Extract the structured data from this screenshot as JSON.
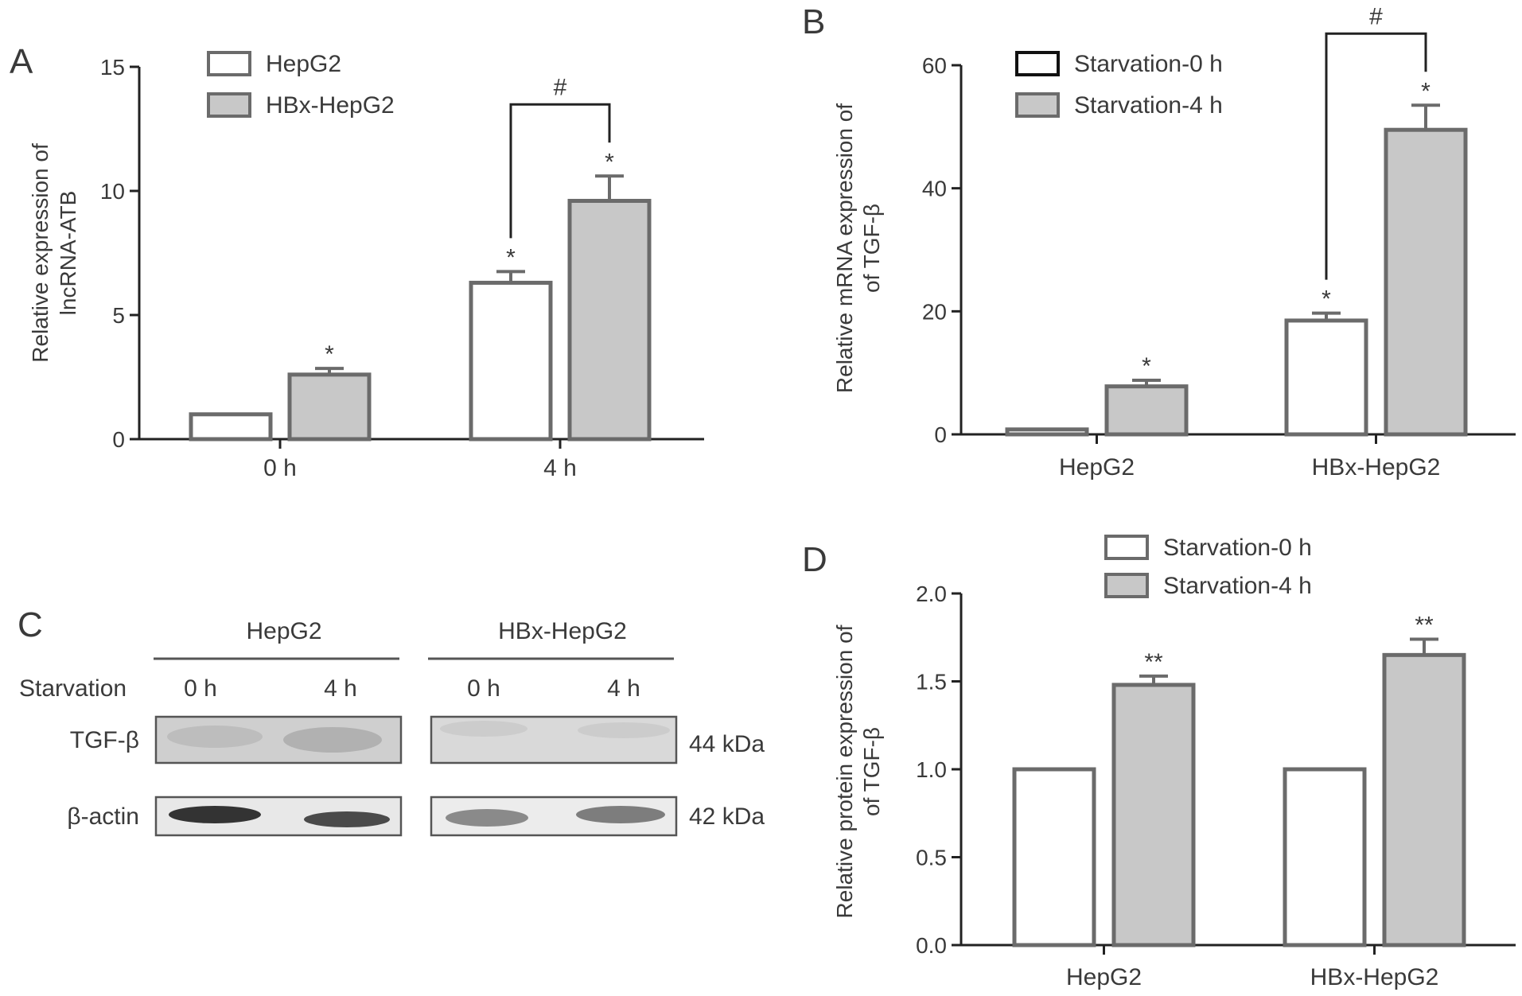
{
  "chart_data": [
    {
      "type": "bar",
      "panel": "A",
      "ylabel_lines": [
        "Relative expression of",
        "lncRNA-ATB"
      ],
      "categories": [
        "0 h",
        "4 h"
      ],
      "series": [
        {
          "name": "HepG2",
          "values": [
            1.0,
            6.3
          ],
          "errors": [
            0,
            0.45
          ],
          "significance": [
            "",
            "*"
          ]
        },
        {
          "name": "HBx-HepG2",
          "values": [
            2.6,
            9.6
          ],
          "errors": [
            0.25,
            1.0
          ],
          "significance": [
            "*",
            "*"
          ]
        }
      ],
      "ylim": [
        0,
        15
      ],
      "yticks": [
        "0",
        "5",
        "10",
        "15"
      ],
      "legend_position": "top-left",
      "bracket": {
        "category_index": 1,
        "label": "#"
      }
    },
    {
      "type": "bar",
      "panel": "B",
      "ylabel_lines": [
        "Relative mRNA expression of",
        "of TGF-β"
      ],
      "categories": [
        "HepG2",
        "HBx-HepG2"
      ],
      "series": [
        {
          "name": "Starvation-0 h",
          "values": [
            0.8,
            18.5
          ],
          "errors": [
            0,
            1.2
          ],
          "significance": [
            "",
            "*"
          ]
        },
        {
          "name": "Starvation-4 h",
          "values": [
            7.8,
            49.5
          ],
          "errors": [
            1.0,
            4.0
          ],
          "significance": [
            "*",
            "*"
          ]
        }
      ],
      "ylim": [
        0,
        60
      ],
      "yticks": [
        "0",
        "20",
        "40",
        "60"
      ],
      "legend_position": "top-left",
      "bracket": {
        "category_index": 1,
        "label": "#"
      }
    },
    {
      "type": "bar",
      "panel": "D",
      "ylabel_lines": [
        "Relative protein expression of",
        "of TGF-β"
      ],
      "categories": [
        "HepG2",
        "HBx-HepG2"
      ],
      "series": [
        {
          "name": "Starvation-0 h",
          "values": [
            1.0,
            1.0
          ],
          "errors": [
            0,
            0
          ],
          "significance": [
            "",
            ""
          ]
        },
        {
          "name": "Starvation-4 h",
          "values": [
            1.48,
            1.65
          ],
          "errors": [
            0.05,
            0.09
          ],
          "significance": [
            "**",
            "**"
          ]
        }
      ],
      "ylim": [
        0,
        2.0
      ],
      "yticks": [
        "0.0",
        "0.5",
        "1.0",
        "1.5",
        "2.0"
      ],
      "legend_position": "top",
      "bracket": null
    }
  ],
  "western_blot": {
    "panel": "C",
    "groups": [
      "HepG2",
      "HBx-HepG2"
    ],
    "row_header": "Starvation",
    "lane_labels": [
      "0 h",
      "4 h",
      "0 h",
      "4 h"
    ],
    "rows": [
      {
        "label": "TGF-β",
        "size": "44 kDa"
      },
      {
        "label": "β-actin",
        "size": "42 kDa"
      }
    ]
  },
  "colors": {
    "bar_empty": "#ffffff",
    "bar_filled": "#c8c8c8",
    "bar_edge": "#6b6b6b",
    "axis": "#222222"
  }
}
